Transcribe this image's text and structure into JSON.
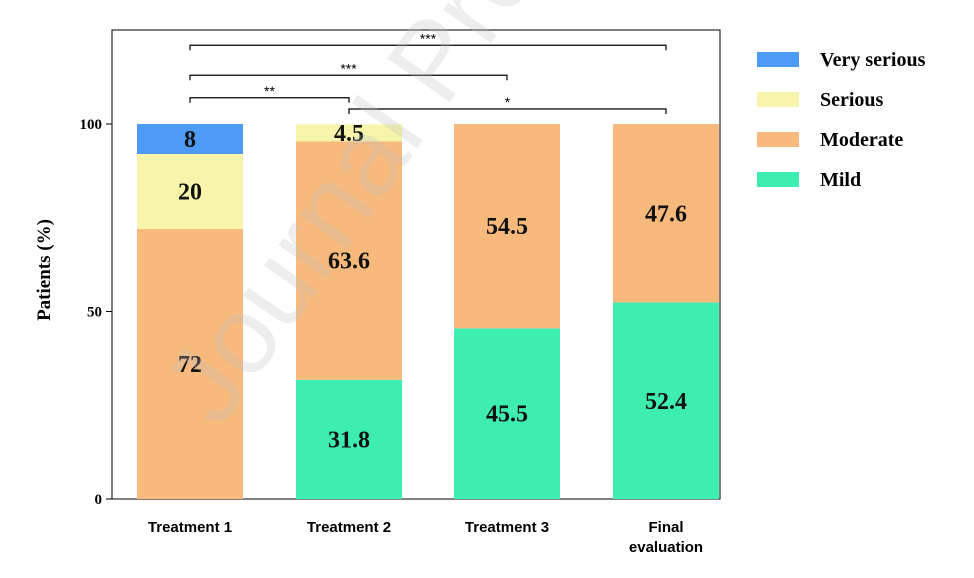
{
  "watermark_text": "Journal Pre-proof",
  "chart_data": {
    "type": "bar",
    "stacked": true,
    "categories": [
      "Treatment 1",
      "Treatment 2",
      "Treatment 3",
      "Final evaluation"
    ],
    "category_lines": [
      [
        "Treatment 1"
      ],
      [
        "Treatment 2"
      ],
      [
        "Treatment 3"
      ],
      [
        "Final",
        "evaluation"
      ]
    ],
    "ylabel": "Patients (%)",
    "ylim": [
      0,
      125
    ],
    "yticks": [
      0,
      50,
      100
    ],
    "grid": false,
    "legend_position": "right",
    "series": [
      {
        "name": "Mild",
        "color": "#3EEDB0",
        "values": [
          0,
          31.8,
          45.5,
          52.4
        ],
        "labels": [
          "",
          "31.8",
          "45.5",
          "52.4"
        ]
      },
      {
        "name": "Moderate",
        "color": "#F8BA7C",
        "values": [
          72,
          63.6,
          54.5,
          47.6
        ],
        "labels": [
          "72",
          "63.6",
          "54.5",
          "47.6"
        ]
      },
      {
        "name": "Serious",
        "color": "#F7F5AC",
        "values": [
          20,
          4.5,
          0,
          0
        ],
        "labels": [
          "20",
          "4.5",
          "",
          ""
        ]
      },
      {
        "name": "Very serious",
        "color": "#4D9BF2",
        "values": [
          8,
          0,
          0,
          0
        ],
        "labels": [
          "8",
          "",
          "",
          ""
        ]
      }
    ],
    "legend_order": [
      "Very serious",
      "Serious",
      "Moderate",
      "Mild"
    ],
    "significance": [
      {
        "from": 0,
        "to": 3,
        "label": "***",
        "level": 121
      },
      {
        "from": 0,
        "to": 2,
        "label": "***",
        "level": 113
      },
      {
        "from": 0,
        "to": 1,
        "label": "**",
        "level": 107
      },
      {
        "from": 1,
        "to": 3,
        "label": "*",
        "level": 104
      }
    ]
  }
}
